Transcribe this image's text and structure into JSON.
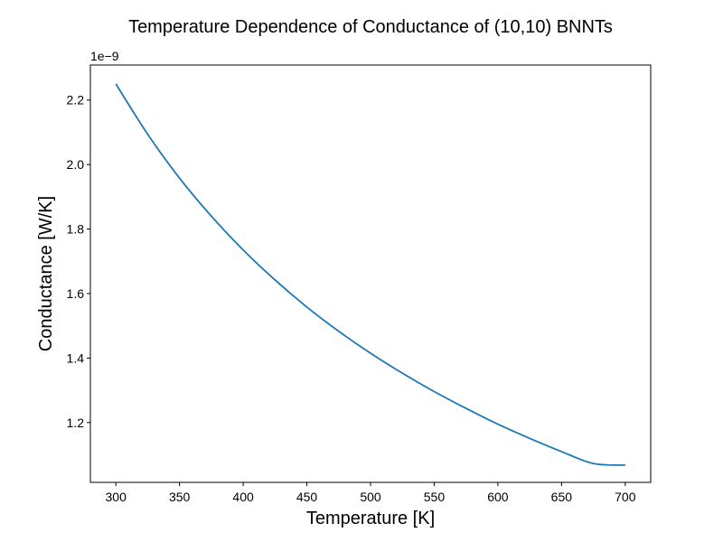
{
  "chart_data": {
    "type": "line",
    "title": "Temperature Dependence of Conductance of (10,10) BNNTs",
    "xlabel": "Temperature [K]",
    "ylabel": "Conductance [W/K]",
    "y_offset_label": "1e−9",
    "y_scale_factor": 1e-09,
    "xlim": [
      280,
      720
    ],
    "ylim": [
      1.0145,
      2.3085
    ],
    "x_ticks": [
      300,
      350,
      400,
      450,
      500,
      550,
      600,
      650,
      700
    ],
    "y_ticks": [
      1.2,
      1.4,
      1.6,
      1.8,
      2.0,
      2.2
    ],
    "y_tick_labels": [
      "1.2",
      "1.4",
      "1.6",
      "1.8",
      "2.0",
      "2.2"
    ],
    "grid": false,
    "series": [
      {
        "name": "",
        "color": "#1f77b4",
        "x": [
          300,
          325,
          350,
          375,
          400,
          425,
          450,
          475,
          500,
          525,
          550,
          575,
          600,
          625,
          650,
          675,
          700
        ],
        "y": [
          2.25,
          2.094,
          1.958,
          1.84,
          1.735,
          1.642,
          1.558,
          1.483,
          1.415,
          1.353,
          1.296,
          1.244,
          1.195,
          1.151,
          1.11,
          1.073,
          1.068
        ]
      }
    ]
  }
}
